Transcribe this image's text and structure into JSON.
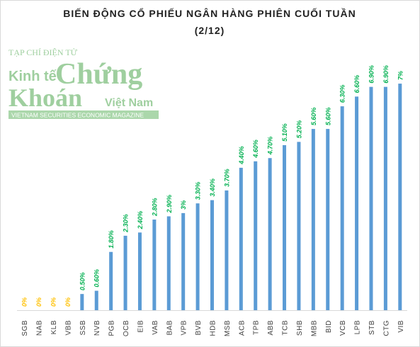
{
  "chart_data": {
    "type": "bar",
    "title": "BIẾN ĐỘNG CỔ PHIẾU NGÂN HÀNG PHIÊN CUỐI TUẦN",
    "subtitle": "(2/12)",
    "categories": [
      "SGB",
      "NAB",
      "KLB",
      "VBB",
      "SSB",
      "NVB",
      "PGB",
      "OCB",
      "EIB",
      "VAB",
      "BAB",
      "VPB",
      "BVB",
      "HDB",
      "MSB",
      "ACB",
      "TPB",
      "ABB",
      "TCB",
      "SHB",
      "MBB",
      "BID",
      "VCB",
      "LPB",
      "STB",
      "CTG",
      "VIB"
    ],
    "values": [
      0,
      0,
      0,
      0,
      0.5,
      0.6,
      1.8,
      2.3,
      2.4,
      2.8,
      2.9,
      3,
      3.3,
      3.4,
      3.7,
      4.4,
      4.6,
      4.7,
      5.1,
      5.2,
      5.6,
      5.6,
      6.3,
      6.6,
      6.9,
      6.9,
      7
    ],
    "value_labels": [
      "0%",
      "0%",
      "0%",
      "0%",
      "0.50%",
      "0.60%",
      "1.80%",
      "2.30%",
      "2.40%",
      "2.80%",
      "2.90%",
      "3%",
      "3.30%",
      "3.40%",
      "3.70%",
      "4.40%",
      "4.60%",
      "4.70%",
      "5.10%",
      "5.20%",
      "5.60%",
      "5.60%",
      "6.30%",
      "6.60%",
      "6.90%",
      "6.90%",
      "7%"
    ],
    "color": "#5b9bd5",
    "label_color": "#00b050",
    "zero_label_color": "#ffc000",
    "watermark": {
      "top": "TẠP CHÍ ĐIỆN TỬ",
      "kinh_te": "Kinh tế",
      "chung": "Chứng",
      "khoan": "Khoán",
      "viet_nam": "Việt Nam",
      "tagline": "VIETNAM SECURITIES ECONOMIC MAGAZINE"
    }
  }
}
